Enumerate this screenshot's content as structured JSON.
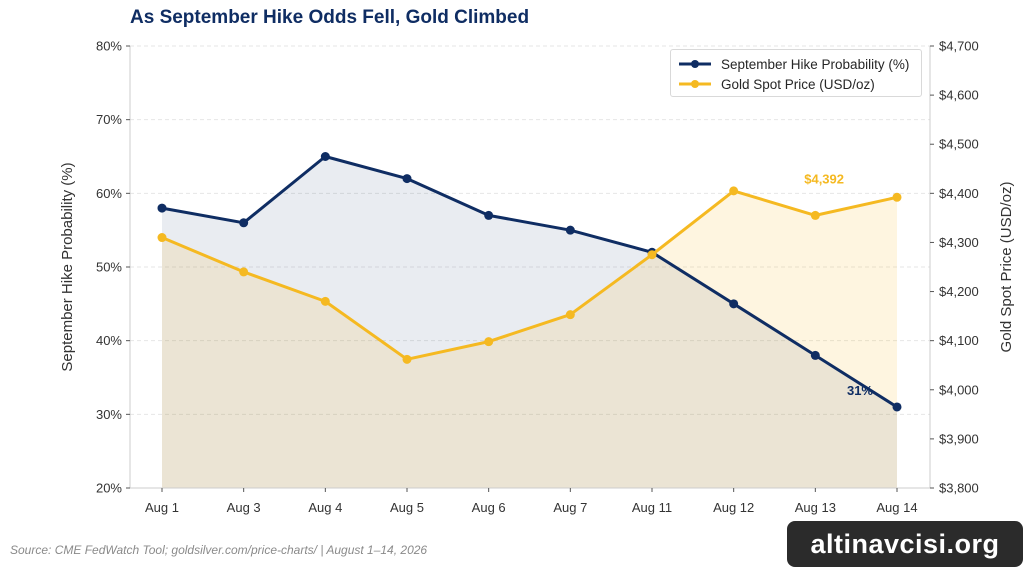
{
  "title": "As September Hike Odds Fell, Gold Climbed",
  "source": "Source: CME FedWatch Tool; goldsilver.com/price-charts/ | August 1–14, 2026",
  "watermark": "altinavcisi.org",
  "colors": {
    "hike": "#0f2d63",
    "gold": "#f5b921",
    "hike_fill": "#e8ecf5",
    "gold_fill": "#fdf4de",
    "overlap_fill": "#e9e6da",
    "grid": "#e6e6e6"
  },
  "legend": {
    "hike_label": "September Hike Probability (%)",
    "gold_label": "Gold Spot Price (USD/oz)"
  },
  "chart_data": {
    "type": "line",
    "title": "As September Hike Odds Fell, Gold Climbed",
    "categories": [
      "Aug 1",
      "Aug 3",
      "Aug 4",
      "Aug 5",
      "Aug 6",
      "Aug 7",
      "Aug 11",
      "Aug 12",
      "Aug 13",
      "Aug 14"
    ],
    "left_axis": {
      "label": "September Hike Probability (%)",
      "ylim": [
        20,
        80
      ],
      "ticks": [
        "20%",
        "30%",
        "40%",
        "50%",
        "60%",
        "70%",
        "80%"
      ]
    },
    "right_axis": {
      "label": "Gold Spot Price (USD/oz)",
      "ylim": [
        3800,
        4700
      ],
      "ticks": [
        "$3,800",
        "$3,900",
        "$4,000",
        "$4,100",
        "$4,200",
        "$4,300",
        "$4,400",
        "$4,500",
        "$4,600",
        "$4,700"
      ]
    },
    "series": [
      {
        "name": "September Hike Probability (%)",
        "axis": "left",
        "values": [
          58,
          56,
          65,
          62,
          57,
          55,
          52,
          45,
          38,
          31
        ],
        "end_label": "31%"
      },
      {
        "name": "Gold Spot Price (USD/oz)",
        "axis": "right",
        "values": [
          4310,
          4240,
          4180,
          4062,
          4098,
          4153,
          4275,
          4405,
          4355,
          4392
        ],
        "end_label": "$4,392"
      }
    ],
    "grid": true,
    "legend_position": "top-right"
  }
}
